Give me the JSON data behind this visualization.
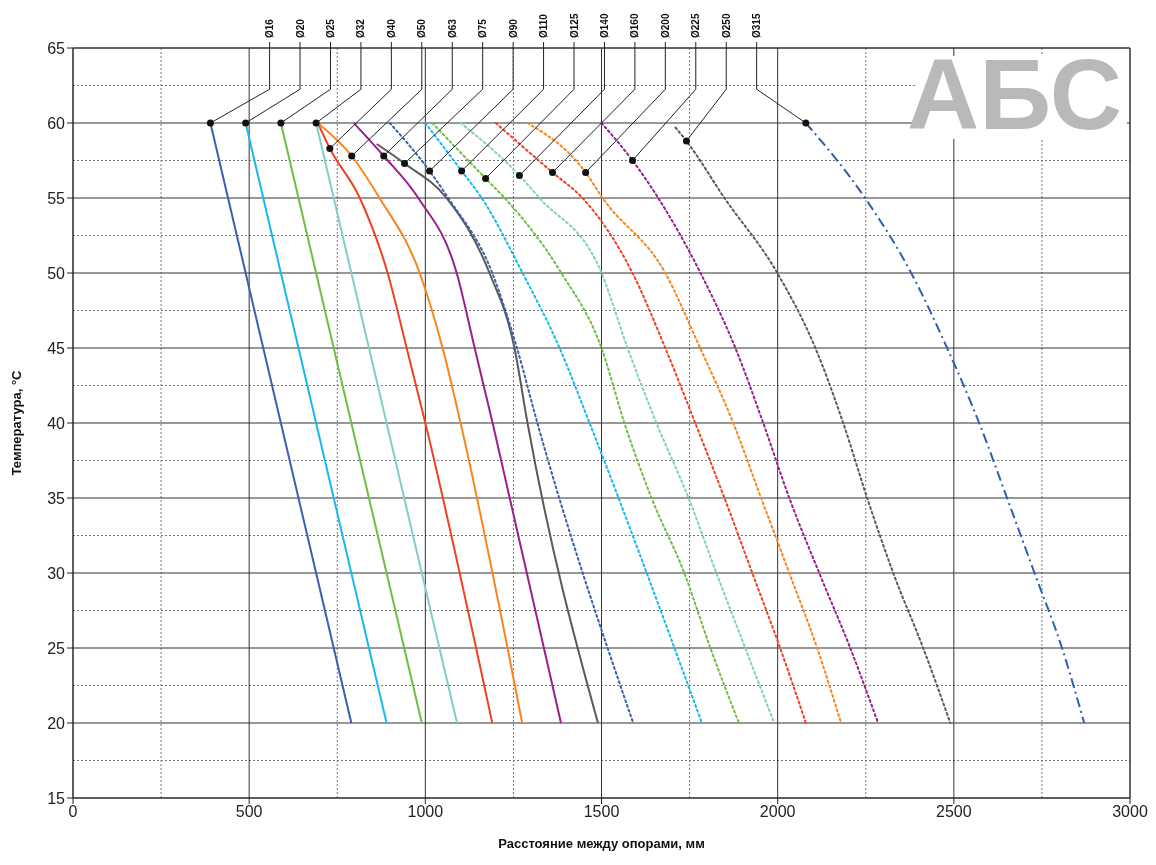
{
  "chart_data": {
    "type": "line",
    "title": "АБС",
    "xlabel": "Расстояние между опорами, мм",
    "ylabel": "Температура, °С",
    "xlim": [
      0,
      3000
    ],
    "ylim": [
      15,
      65
    ],
    "xticks": [
      0,
      500,
      1000,
      1500,
      2000,
      2500,
      3000
    ],
    "yticks": [
      15,
      20,
      25,
      30,
      35,
      40,
      45,
      50,
      55,
      60,
      65
    ],
    "grid": true,
    "series": [
      {
        "color": "#3a5fad",
        "line_style": "solid",
        "x": [
          390,
          790
        ],
        "values": [
          60,
          20
        ]
      },
      {
        "color": "#18b8ea",
        "line_style": "solid",
        "x": [
          490,
          890
        ],
        "values": [
          60,
          20
        ]
      },
      {
        "color": "#6cbf44",
        "line_style": "solid",
        "x": [
          590,
          990
        ],
        "values": [
          60,
          20
        ]
      },
      {
        "color": "#7fcfc8",
        "line_style": "solid",
        "x": [
          690,
          1090
        ],
        "values": [
          60,
          20
        ]
      },
      {
        "color": "#ef4123",
        "line_style": "solid",
        "x": [
          695,
          729,
          814,
          893,
          947,
          1000,
          1190
        ],
        "values": [
          60,
          58.3,
          55,
          50,
          45,
          40,
          20
        ]
      },
      {
        "color": "#f7861e",
        "line_style": "solid",
        "x": [
          695,
          791,
          870,
          984,
          1049,
          1100,
          1275
        ],
        "values": [
          60,
          57.8,
          55,
          50,
          45,
          40,
          20
        ]
      },
      {
        "color": "#9b1f8f",
        "line_style": "solid",
        "x": [
          797,
          882,
          980,
          1089,
          1140,
          1191,
          1385
        ],
        "values": [
          60,
          57.8,
          55,
          50,
          45,
          40,
          20
        ]
      },
      {
        "color": "#5a5a5a",
        "line_style": "solid",
        "x": [
          862,
          941,
          1060,
          1182,
          1253,
          1290,
          1490
        ],
        "values": [
          58.6,
          57.3,
          55,
          50,
          45,
          40,
          20
        ]
      },
      {
        "color": "#3a5fad",
        "line_style": "dotted",
        "x": [
          899,
          1012,
          1065,
          1190,
          1260,
          1318,
          1590
        ],
        "values": [
          60,
          56.8,
          55,
          50,
          45,
          40,
          20
        ]
      },
      {
        "color": "#18b8ea",
        "line_style": "dotted",
        "x": [
          1000,
          1103,
          1160,
          1276,
          1381,
          1466,
          1785
        ],
        "values": [
          60,
          56.8,
          55,
          50,
          45,
          40,
          20
        ]
      },
      {
        "color": "#6cbf44",
        "line_style": "dotted",
        "x": [
          1020,
          1171,
          1225,
          1386,
          1500,
          1565,
          1642,
          1735,
          1809,
          1890
        ],
        "values": [
          60,
          56.3,
          55,
          50,
          45,
          40,
          35,
          30,
          25,
          20
        ]
      },
      {
        "color": "#7fcfc8",
        "line_style": "dotted",
        "x": [
          1100,
          1267,
          1324,
          1500,
          1574,
          1656,
          1747,
          1826,
          1908,
          1990
        ],
        "values": [
          60,
          56.5,
          55,
          50,
          45,
          40,
          35,
          30,
          25,
          20
        ]
      },
      {
        "color": "#ef4123",
        "line_style": "dotted",
        "x": [
          1200,
          1361,
          1446,
          1588,
          1681,
          1766,
          1849,
          1928,
          2007,
          2080
        ],
        "values": [
          60,
          56.7,
          55,
          50,
          45,
          40,
          35,
          30,
          25,
          20
        ]
      },
      {
        "color": "#f7861e",
        "line_style": "dotted",
        "x": [
          1290,
          1455,
          1503,
          1681,
          1780,
          1874,
          1953,
          2033,
          2112,
          2180
        ],
        "values": [
          60,
          56.7,
          55,
          50,
          45,
          40,
          35,
          30,
          25,
          20
        ]
      },
      {
        "color": "#9b1f8f",
        "line_style": "dotted",
        "x": [
          1500,
          1588,
          1661,
          1781,
          1880,
          1959,
          2033,
          2118,
          2206,
          2285
        ],
        "values": [
          60,
          57.5,
          55,
          50,
          45,
          40,
          35,
          30,
          25,
          20
        ]
      },
      {
        "color": "#5a5a5a",
        "line_style": "dotted",
        "x": [
          1710,
          1741,
          1849,
          1999,
          2107,
          2186,
          2254,
          2328,
          2413,
          2490
        ],
        "values": [
          59.7,
          58.8,
          55,
          50,
          45,
          40,
          35,
          30,
          25,
          20
        ]
      },
      {
        "color": "#2f5fb0",
        "line_style": "dashed",
        "x": [
          2080,
          2248,
          2379,
          2481,
          2572,
          2651,
          2729,
          2807,
          2870
        ],
        "values": [
          60,
          55,
          50,
          45,
          40,
          35,
          30,
          25,
          20
        ]
      }
    ],
    "annotations": [
      {
        "text": "Ø16",
        "x": 390,
        "y": 60
      },
      {
        "text": "Ø20",
        "x": 490,
        "y": 60
      },
      {
        "text": "Ø25",
        "x": 590,
        "y": 60
      },
      {
        "text": "Ø32",
        "x": 690,
        "y": 60
      },
      {
        "text": "Ø40",
        "x": 729,
        "y": 58.3
      },
      {
        "text": "Ø50",
        "x": 791,
        "y": 57.8
      },
      {
        "text": "Ø63",
        "x": 882,
        "y": 57.8
      },
      {
        "text": "Ø75",
        "x": 941,
        "y": 57.3
      },
      {
        "text": "Ø90",
        "x": 1012,
        "y": 56.8
      },
      {
        "text": "Ø110",
        "x": 1103,
        "y": 56.8
      },
      {
        "text": "Ø125",
        "x": 1171,
        "y": 56.3
      },
      {
        "text": "Ø140",
        "x": 1267,
        "y": 56.5
      },
      {
        "text": "Ø160",
        "x": 1361,
        "y": 56.7
      },
      {
        "text": "Ø200",
        "x": 1455,
        "y": 56.7
      },
      {
        "text": "Ø225",
        "x": 1588,
        "y": 57.5
      },
      {
        "text": "Ø250",
        "x": 1741,
        "y": 58.8
      },
      {
        "text": "Ø315",
        "x": 2080,
        "y": 60
      }
    ]
  }
}
